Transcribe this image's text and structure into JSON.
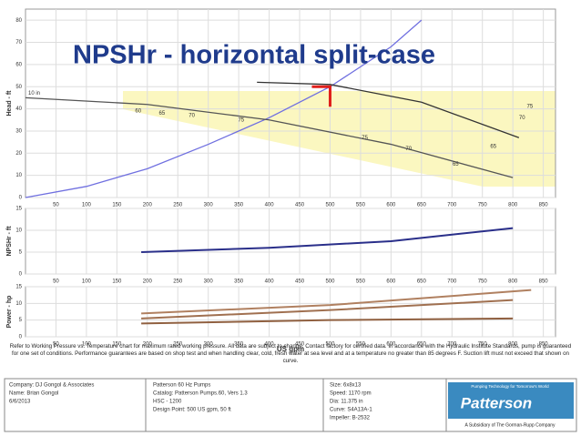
{
  "title": "NPSHr - horizontal split-case",
  "chart_data": [
    {
      "type": "line",
      "ylabel": "Head - ft",
      "xlim": [
        0,
        870
      ],
      "ylim": [
        0,
        85
      ],
      "xticks": [
        50,
        100,
        150,
        200,
        250,
        300,
        350,
        400,
        450,
        500,
        550,
        600,
        650,
        700,
        750,
        800,
        850
      ],
      "yticks": [
        0,
        10,
        20,
        30,
        40,
        50,
        60,
        70,
        80
      ],
      "grid": true,
      "series": [
        {
          "color": "#7070e0",
          "x": [
            0,
            100,
            200,
            300,
            400,
            500,
            600,
            650
          ],
          "values": [
            0,
            5,
            13,
            24,
            36,
            50,
            68,
            80
          ]
        },
        {
          "name": "10 in",
          "color": "#555555",
          "x": [
            0,
            200,
            400,
            600,
            800
          ],
          "values": [
            45,
            42,
            35,
            24,
            9
          ]
        },
        {
          "color": "#333333",
          "x": [
            380,
            500,
            650,
            810
          ],
          "values": [
            52,
            51,
            43,
            27
          ]
        }
      ],
      "annotations": [
        {
          "text": "60",
          "x": 185,
          "y": 39
        },
        {
          "text": "65",
          "x": 224,
          "y": 38
        },
        {
          "text": "70",
          "x": 273,
          "y": 37
        },
        {
          "text": "75",
          "x": 354,
          "y": 35
        },
        {
          "text": "75",
          "x": 557,
          "y": 27
        },
        {
          "text": "70",
          "x": 629,
          "y": 22
        },
        {
          "text": "65",
          "x": 706,
          "y": 15
        },
        {
          "text": "65",
          "x": 768,
          "y": 23
        },
        {
          "text": "70",
          "x": 815,
          "y": 36
        },
        {
          "text": "75",
          "x": 828,
          "y": 41
        }
      ],
      "marker": {
        "x": 500,
        "y": 50,
        "color": "#e0201c"
      }
    },
    {
      "type": "line",
      "ylabel": "NPSHr - ft",
      "xlim": [
        0,
        870
      ],
      "ylim": [
        0,
        15
      ],
      "xticks": [
        50,
        100,
        150,
        200,
        250,
        300,
        350,
        400,
        450,
        500,
        550,
        600,
        650,
        700,
        750,
        800,
        850
      ],
      "yticks": [
        0,
        5,
        10,
        15
      ],
      "grid": true,
      "series": [
        {
          "color": "#2a2f8a",
          "x": [
            190,
            400,
            600,
            800
          ],
          "values": [
            5,
            6,
            7.5,
            10.5
          ]
        }
      ]
    },
    {
      "type": "line",
      "ylabel": "Power - hp",
      "xlabel": "US gpm",
      "xlim": [
        0,
        870
      ],
      "ylim": [
        0,
        15
      ],
      "xticks": [
        50,
        100,
        150,
        200,
        250,
        300,
        350,
        400,
        450,
        500,
        550,
        600,
        650,
        700,
        750,
        800,
        850
      ],
      "yticks": [
        0,
        5,
        10,
        15
      ],
      "grid": true,
      "series": [
        {
          "color": "#b08060",
          "x": [
            190,
            500,
            830
          ],
          "values": [
            7,
            9.5,
            14
          ]
        },
        {
          "color": "#a07050",
          "x": [
            190,
            500,
            800
          ],
          "values": [
            5.5,
            8,
            11
          ]
        },
        {
          "color": "#906040",
          "x": [
            190,
            500,
            800
          ],
          "values": [
            4,
            5,
            5.5
          ]
        }
      ]
    }
  ],
  "note": "Refer to Working Pressure vs. Temperature chart for maximum rated working pressure. All data are subject to change. Contact factory for certified data. In accordance with the Hydraulic Institute Standards, pump is guaranteed for one set of conditions. Performance guarantees are based on shop test and when handling clear, cold, fresh water at sea level and at a temperature no greater than 85 degrees F. Suction lift must not exceed that shown on curve.",
  "info": {
    "left": [
      "Company: DJ Gongol & Associates",
      "Name: Brian Gongol",
      "6/6/2013"
    ],
    "middle": [
      "Patterson 60 Hz Pumps",
      "Catalog: Patterson Pumps.60, Vers 1.3",
      "HSC - 1200",
      "Design Point: 500 US gpm, 50 ft"
    ],
    "right": [
      "Size: 6x8x13",
      "Speed: 1170 rpm",
      "Dia: 11.375 in",
      "Curve: S4A13A-1",
      "Impeller: B-2532"
    ]
  },
  "logo": {
    "tagline": "Pumping Technology for Tomorrow's World",
    "name": "Patterson",
    "subsidiary": "A Subsidiary of The Gorman-Rupp Company"
  }
}
